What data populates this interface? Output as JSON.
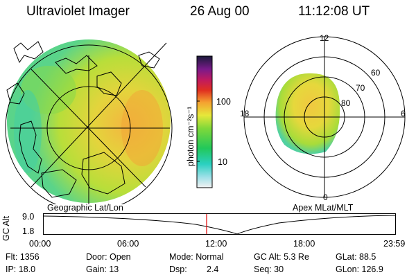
{
  "header": {
    "instrument": "Ultraviolet Imager",
    "date": "26 Aug 00",
    "time": "11:12:08 UT"
  },
  "colorbar": {
    "unit_label": "photon cm⁻²s⁻¹",
    "ticks": [
      "100",
      "10"
    ]
  },
  "left_panel": {
    "label": "Geographic Lat/Lon"
  },
  "right_panel": {
    "label": "Apex MLat/MLT",
    "mlt_labels": [
      "12",
      "18",
      "6",
      "0"
    ],
    "mlat_labels": [
      "60",
      "70",
      "80"
    ]
  },
  "altitude_plot": {
    "axis_label": "GC Alt",
    "y_ticks": [
      "9.0",
      "1.8"
    ],
    "x_ticks": [
      "00:00",
      "06:00",
      "12:00",
      "18:00",
      "23:59"
    ],
    "marker_color": "#e00000"
  },
  "info": {
    "flt": "Flt: 1356",
    "ip": "IP: 18.0",
    "door": "Door: Open",
    "gain": "Gain: 13",
    "mode": "Mode: Normal",
    "dsp_label": "Dsp:",
    "dsp_value": "2.4",
    "gc_alt": "GC Alt: 5.3 Re",
    "seq": "Seq: 30",
    "glat": "GLat: 88.5",
    "glon": "GLon: 126.9"
  }
}
